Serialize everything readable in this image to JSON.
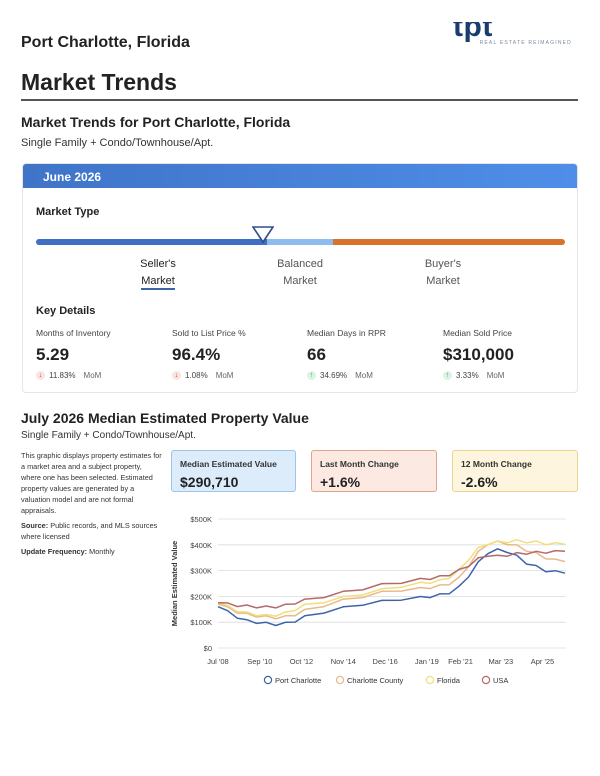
{
  "header": {
    "city": "Port Charlotte, Florida",
    "logo_text": "tpt realty",
    "logo_tagline": "REAL ESTATE REIMAGINED"
  },
  "page": {
    "title": "Market Trends",
    "subtitle": "Market Trends for Port Charlotte, Florida",
    "property_type": "Single Family + Condo/Townhouse/Apt."
  },
  "market_card": {
    "month": "June 2026",
    "market_type_label": "Market Type",
    "indicator_position": 0.43,
    "labels": {
      "seller": [
        "Seller's",
        "Market"
      ],
      "balanced": [
        "Balanced",
        "Market"
      ],
      "buyer": [
        "Buyer's",
        "Market"
      ]
    },
    "key_details_label": "Key Details",
    "stats": [
      {
        "label": "Months of Inventory",
        "value": "5.29",
        "direction": "down",
        "change": "11.83%",
        "period": "MoM"
      },
      {
        "label": "Sold to List Price %",
        "value": "96.4%",
        "direction": "down",
        "change": "1.08%",
        "period": "MoM"
      },
      {
        "label": "Median Days in RPR",
        "value": "66",
        "direction": "up",
        "change": "34.69%",
        "period": "MoM"
      },
      {
        "label": "Median Sold Price",
        "value": "$310,000",
        "direction": "up",
        "change": "3.33%",
        "period": "MoM"
      }
    ],
    "colors": {
      "seller": "#3e6fc2",
      "balanced": "#8fbcf0",
      "buyer": "#d9732c"
    }
  },
  "value_section": {
    "title": "July 2026 Median Estimated Property Value",
    "property_type": "Single Family + Condo/Townhouse/Apt.",
    "description": "This graphic displays property estimates for a market area and a subject property, where one has been selected. Estimated property values are generated by a valuation model and are not formal appraisals.",
    "source_label": "Source:",
    "source_text": "Public records, and MLS sources where licensed",
    "update_label": "Update Frequency:",
    "update_text": "Monthly",
    "boxes": [
      {
        "label": "Median Estimated Value",
        "value": "$290,710"
      },
      {
        "label": "Last Month Change",
        "value": "+1.6%"
      },
      {
        "label": "12 Month Change",
        "value": "-2.6%"
      }
    ]
  },
  "chart_data": {
    "type": "line",
    "title": "",
    "xlabel": "",
    "ylabel": "Median Estimated Value",
    "ylim": [
      0,
      500000
    ],
    "y_ticks": [
      0,
      100000,
      200000,
      300000,
      400000,
      500000
    ],
    "y_tick_labels": [
      "$0",
      "$100K",
      "$200K",
      "$300K",
      "$400K",
      "$500K"
    ],
    "x_range": [
      2008.5,
      2026.55
    ],
    "x_ticks": [
      2008.5,
      2010.67,
      2012.83,
      2015.0,
      2017.17,
      2019.33,
      2021.08,
      2023.17,
      2025.33
    ],
    "x_tick_labels": [
      "Jul '08",
      "Sep '10",
      "Oct '12",
      "Nov '14",
      "Dec '16",
      "Jan '19",
      "Feb '21",
      "Mar '23",
      "Apr '25"
    ],
    "grid": true,
    "legend_position": "bottom",
    "series": [
      {
        "name": "Port Charlotte",
        "color": "#3d64a8",
        "x": [
          2008.5,
          2009.0,
          2009.5,
          2010.0,
          2010.5,
          2011.0,
          2011.5,
          2012.0,
          2012.5,
          2013.0,
          2014.0,
          2015.0,
          2016.0,
          2017.0,
          2018.0,
          2019.0,
          2019.5,
          2020.0,
          2020.5,
          2021.0,
          2021.5,
          2022.0,
          2022.5,
          2023.0,
          2023.5,
          2024.0,
          2024.5,
          2025.0,
          2025.5,
          2026.0,
          2026.5
        ],
        "y": [
          160000,
          140000,
          120000,
          105000,
          100000,
          95000,
          92000,
          95000,
          105000,
          120000,
          140000,
          155000,
          170000,
          180000,
          190000,
          195000,
          200000,
          205000,
          215000,
          235000,
          280000,
          330000,
          370000,
          380000,
          375000,
          355000,
          330000,
          315000,
          300000,
          295000,
          290000
        ]
      },
      {
        "name": "Charlotte County",
        "color": "#e8b98a",
        "x": [
          2008.5,
          2009.0,
          2009.5,
          2010.0,
          2010.5,
          2011.0,
          2011.5,
          2012.0,
          2012.5,
          2013.0,
          2014.0,
          2015.0,
          2016.0,
          2017.0,
          2018.0,
          2019.0,
          2019.5,
          2020.0,
          2020.5,
          2021.0,
          2021.5,
          2022.0,
          2022.5,
          2023.0,
          2023.5,
          2024.0,
          2024.5,
          2025.0,
          2025.5,
          2026.0,
          2026.5
        ],
        "y": [
          170000,
          155000,
          140000,
          130000,
          125000,
          120000,
          118000,
          120000,
          130000,
          145000,
          165000,
          185000,
          200000,
          215000,
          225000,
          230000,
          235000,
          240000,
          250000,
          270000,
          320000,
          370000,
          405000,
          410000,
          405000,
          395000,
          380000,
          365000,
          350000,
          340000,
          335000
        ]
      },
      {
        "name": "Florida",
        "color": "#f0df7c",
        "x": [
          2008.5,
          2009.0,
          2009.5,
          2010.0,
          2010.5,
          2011.0,
          2011.5,
          2012.0,
          2012.5,
          2013.0,
          2014.0,
          2015.0,
          2016.0,
          2017.0,
          2018.0,
          2019.0,
          2019.5,
          2020.0,
          2020.5,
          2021.0,
          2021.5,
          2022.0,
          2022.5,
          2023.0,
          2023.5,
          2024.0,
          2024.5,
          2025.0,
          2025.5,
          2026.0,
          2026.5
        ],
        "y": [
          175000,
          160000,
          145000,
          135000,
          130000,
          125000,
          128000,
          135000,
          150000,
          165000,
          180000,
          195000,
          210000,
          225000,
          240000,
          250000,
          255000,
          260000,
          275000,
          300000,
          345000,
          385000,
          405000,
          410000,
          412000,
          415000,
          412000,
          410000,
          405000,
          403000,
          402000
        ]
      },
      {
        "name": "USA",
        "color": "#b46a6a",
        "x": [
          2008.5,
          2009.0,
          2009.5,
          2010.0,
          2010.5,
          2011.0,
          2011.5,
          2012.0,
          2012.5,
          2013.0,
          2014.0,
          2015.0,
          2016.0,
          2017.0,
          2018.0,
          2019.0,
          2019.5,
          2020.0,
          2020.5,
          2021.0,
          2021.5,
          2022.0,
          2022.5,
          2023.0,
          2023.5,
          2024.0,
          2024.5,
          2025.0,
          2025.5,
          2026.0,
          2026.5
        ],
        "y": [
          175000,
          170000,
          165000,
          162000,
          160000,
          158000,
          160000,
          165000,
          175000,
          185000,
          200000,
          215000,
          230000,
          245000,
          255000,
          265000,
          270000,
          275000,
          285000,
          300000,
          320000,
          345000,
          360000,
          355000,
          360000,
          365000,
          368000,
          370000,
          372000,
          373000,
          375000
        ]
      }
    ]
  }
}
